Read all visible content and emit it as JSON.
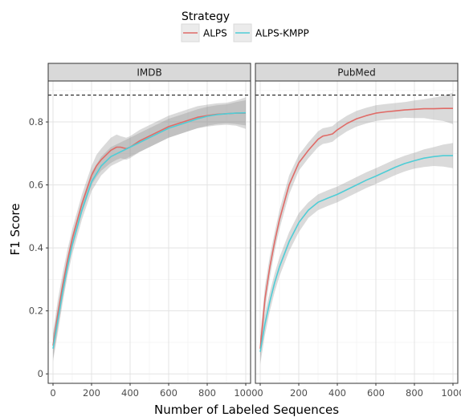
{
  "chart_data": {
    "type": "line",
    "xlabel": "Number of Labeled Sequences",
    "ylabel": "F1 Score",
    "xlim": [
      -25,
      1025
    ],
    "ylim": [
      -0.03,
      0.93
    ],
    "xticks": [
      0,
      200,
      400,
      600,
      800,
      1000
    ],
    "yticks": [
      0,
      0.2,
      0.4,
      0.6,
      0.8
    ],
    "ytick_labels": [
      "0",
      "0.2",
      "0.4",
      "0.6",
      "0.8"
    ],
    "grid": true,
    "legend": {
      "title": "Strategy",
      "placement": "top",
      "entries": [
        {
          "label": "ALPS",
          "color": "#e06b67"
        },
        {
          "label": "ALPS-KMPP",
          "color": "#4fcdd6"
        }
      ]
    },
    "reference_line": {
      "y": 0.885,
      "style": "dashed"
    },
    "panels": [
      {
        "title": "IMDB",
        "series": [
          {
            "name": "ALPS",
            "color": "#e06b67",
            "x": [
              0,
              25,
              50,
              75,
              100,
              150,
              200,
              225,
              250,
              300,
              330,
              350,
              380,
              400,
              450,
              500,
              550,
              600,
              650,
              700,
              750,
              800,
              850,
              900,
              950,
              1000
            ],
            "y": [
              0.09,
              0.19,
              0.28,
              0.36,
              0.43,
              0.54,
              0.63,
              0.66,
              0.68,
              0.71,
              0.72,
              0.72,
              0.715,
              0.72,
              0.74,
              0.755,
              0.77,
              0.785,
              0.795,
              0.805,
              0.815,
              0.82,
              0.824,
              0.826,
              0.828,
              0.828
            ],
            "band": [
              0.04,
              0.045,
              0.04,
              0.035,
              0.03,
              0.03,
              0.03,
              0.035,
              0.035,
              0.04,
              0.04,
              0.035,
              0.035,
              0.035,
              0.035,
              0.035,
              0.035,
              0.035,
              0.035,
              0.035,
              0.035,
              0.035,
              0.035,
              0.035,
              0.04,
              0.05
            ]
          },
          {
            "name": "ALPS-KMPP",
            "color": "#4fcdd6",
            "x": [
              0,
              25,
              50,
              75,
              100,
              150,
              200,
              250,
              300,
              350,
              400,
              450,
              500,
              550,
              600,
              650,
              700,
              750,
              800,
              850,
              900,
              950,
              1000
            ],
            "y": [
              0.08,
              0.17,
              0.26,
              0.34,
              0.41,
              0.52,
              0.61,
              0.66,
              0.69,
              0.705,
              0.72,
              0.735,
              0.75,
              0.765,
              0.78,
              0.79,
              0.8,
              0.81,
              0.818,
              0.823,
              0.826,
              0.828,
              0.829
            ],
            "band": [
              0.04,
              0.04,
              0.035,
              0.03,
              0.03,
              0.03,
              0.03,
              0.03,
              0.03,
              0.03,
              0.03,
              0.03,
              0.03,
              0.03,
              0.03,
              0.03,
              0.03,
              0.03,
              0.03,
              0.03,
              0.03,
              0.035,
              0.04
            ]
          }
        ]
      },
      {
        "title": "PubMed",
        "series": [
          {
            "name": "ALPS",
            "color": "#e06b67",
            "x": [
              0,
              25,
              50,
              75,
              100,
              150,
              200,
              250,
              300,
              325,
              350,
              375,
              400,
              450,
              500,
              550,
              600,
              650,
              700,
              750,
              800,
              850,
              900,
              950,
              1000
            ],
            "y": [
              0.08,
              0.24,
              0.34,
              0.42,
              0.49,
              0.6,
              0.67,
              0.71,
              0.745,
              0.755,
              0.758,
              0.762,
              0.775,
              0.795,
              0.81,
              0.82,
              0.828,
              0.832,
              0.835,
              0.838,
              0.84,
              0.842,
              0.842,
              0.843,
              0.843
            ],
            "band": [
              0.04,
              0.04,
              0.035,
              0.03,
              0.03,
              0.03,
              0.025,
              0.025,
              0.025,
              0.025,
              0.025,
              0.025,
              0.025,
              0.025,
              0.025,
              0.025,
              0.025,
              0.025,
              0.025,
              0.025,
              0.028,
              0.03,
              0.035,
              0.04,
              0.05
            ]
          },
          {
            "name": "ALPS-KMPP",
            "color": "#4fcdd6",
            "x": [
              0,
              25,
              50,
              75,
              100,
              150,
              200,
              250,
              300,
              350,
              400,
              450,
              500,
              550,
              600,
              650,
              700,
              750,
              800,
              850,
              900,
              950,
              1000
            ],
            "y": [
              0.07,
              0.16,
              0.23,
              0.29,
              0.34,
              0.42,
              0.48,
              0.52,
              0.545,
              0.558,
              0.57,
              0.585,
              0.6,
              0.615,
              0.628,
              0.642,
              0.656,
              0.668,
              0.677,
              0.685,
              0.69,
              0.693,
              0.693
            ],
            "band": [
              0.04,
              0.035,
              0.03,
              0.03,
              0.03,
              0.03,
              0.03,
              0.025,
              0.025,
              0.025,
              0.025,
              0.025,
              0.025,
              0.025,
              0.025,
              0.025,
              0.025,
              0.025,
              0.025,
              0.028,
              0.03,
              0.035,
              0.04
            ]
          }
        ]
      }
    ]
  }
}
